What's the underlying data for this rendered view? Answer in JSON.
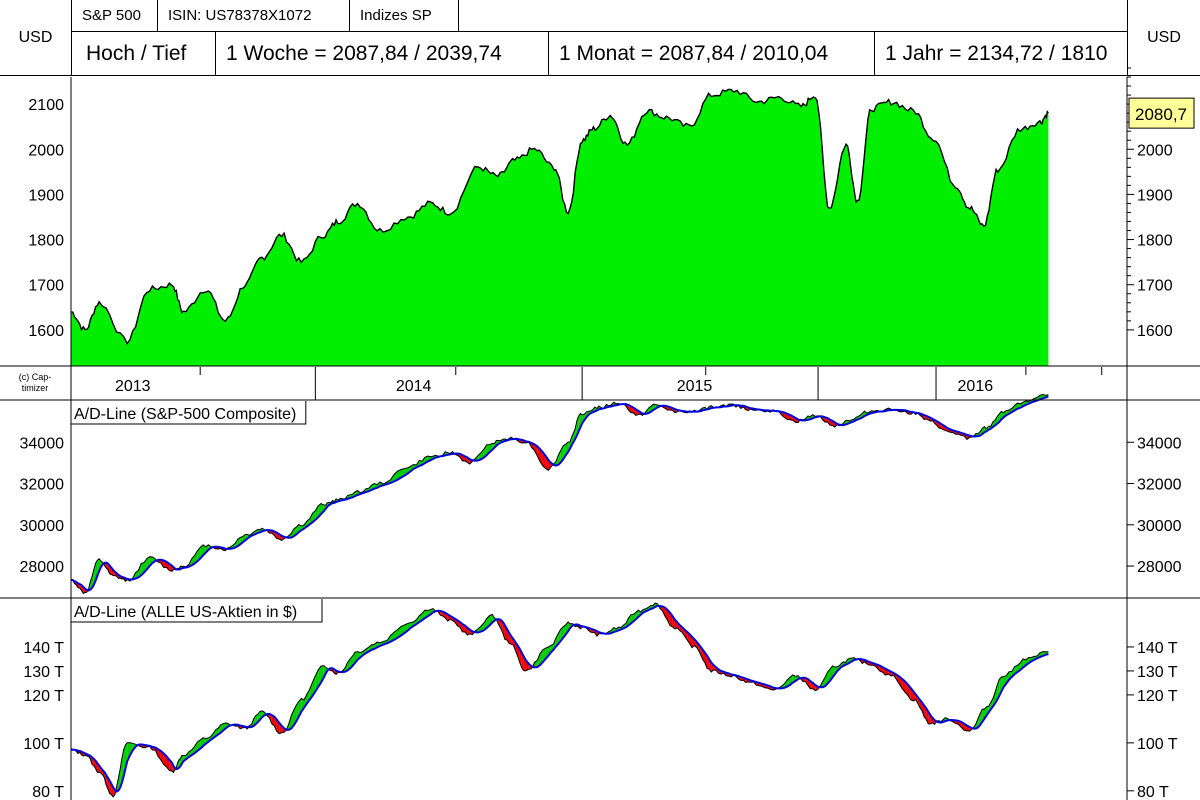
{
  "header": {
    "row1": [
      "S&P 500",
      "ISIN: US78378X1072",
      "Indizes SP"
    ],
    "row2": [
      "Hoch / Tief",
      "1 Woche = 2087,84 / 2039,74",
      "1 Monat = 2087,84 / 2010,04",
      "1 Jahr = 2134,72 / 1810"
    ],
    "currency_left": "USD",
    "currency_right": "USD"
  },
  "copyright": [
    "(c) Cap-",
    "timizer"
  ],
  "colors": {
    "price_fill": "#00ee00",
    "up_fill": "#00cc00",
    "down_fill": "#ee0000",
    "ma_line": "#0000dd",
    "last_price_bg": "#ffff99"
  },
  "chart_data": [
    {
      "type": "area",
      "name": "S&P 500",
      "ylim": [
        1520,
        2160
      ],
      "yticks": [
        "1600",
        "1700",
        "1800",
        "1900",
        "2000",
        "2100"
      ],
      "last_value_label": "2080,7",
      "x_axis_labels": [
        "2013",
        "2014",
        "2015",
        "2016"
      ],
      "x": [
        2012.8,
        2012.85,
        2012.9,
        2013.0,
        2013.08,
        2013.16,
        2013.2,
        2013.28,
        2013.35,
        2013.42,
        2013.48,
        2013.55,
        2013.62,
        2013.7,
        2013.75,
        2013.82,
        2013.9,
        2014.0,
        2014.08,
        2014.15,
        2014.25,
        2014.32,
        2014.38,
        2014.45,
        2014.52,
        2014.57,
        2014.62,
        2014.66,
        2014.72,
        2014.78,
        2014.85,
        2014.92,
        2015.0,
        2015.08,
        2015.16,
        2015.25,
        2015.32,
        2015.4,
        2015.45,
        2015.5,
        2015.56,
        2015.6,
        2015.65,
        2015.72,
        2015.8,
        2015.87,
        2015.95,
        2016.0,
        2016.05,
        2016.1,
        2016.18,
        2016.25,
        2016.28
      ],
      "values": [
        1640,
        1600,
        1660,
        1575,
        1690,
        1700,
        1640,
        1690,
        1620,
        1700,
        1760,
        1810,
        1750,
        1810,
        1840,
        1880,
        1820,
        1850,
        1880,
        1860,
        1960,
        1940,
        1975,
        2000,
        1960,
        1862,
        2020,
        2045,
        2075,
        2010,
        2085,
        2070,
        2050,
        2120,
        2130,
        2105,
        2115,
        2095,
        2120,
        1870,
        2010,
        1885,
        2090,
        2105,
        2085,
        2025,
        1920,
        1870,
        1830,
        1955,
        2045,
        2060,
        2080
      ]
    },
    {
      "type": "line",
      "name": "A/D-Line (S&P-500 Composite)",
      "ylim": [
        26500,
        36000
      ],
      "yticks": [
        "28000",
        "30000",
        "32000",
        "34000"
      ],
      "x": [
        2012.8,
        2012.85,
        2012.9,
        2012.95,
        2013.0,
        2013.08,
        2013.16,
        2013.2,
        2013.28,
        2013.35,
        2013.42,
        2013.48,
        2013.55,
        2013.62,
        2013.7,
        2013.75,
        2013.82,
        2013.9,
        2014.0,
        2014.08,
        2014.15,
        2014.22,
        2014.3,
        2014.36,
        2014.42,
        2014.5,
        2014.57,
        2014.62,
        2014.68,
        2014.75,
        2014.82,
        2014.88,
        2014.95,
        2015.02,
        2015.08,
        2015.15,
        2015.22,
        2015.3,
        2015.38,
        2015.45,
        2015.52,
        2015.58,
        2015.64,
        2015.72,
        2015.8,
        2015.86,
        2015.92,
        2016.0,
        2016.06,
        2016.12,
        2016.2,
        2016.28
      ],
      "values": [
        27300,
        26700,
        28300,
        27500,
        27300,
        28400,
        27800,
        28000,
        29000,
        28800,
        29500,
        29800,
        29300,
        30000,
        31000,
        31200,
        31600,
        32000,
        32800,
        33300,
        33500,
        33000,
        34000,
        34200,
        34000,
        32700,
        34000,
        35400,
        35700,
        35900,
        35300,
        35800,
        35500,
        35500,
        35700,
        35800,
        35600,
        35500,
        35000,
        35300,
        34800,
        35100,
        35500,
        35600,
        35400,
        35000,
        34500,
        34200,
        34700,
        35500,
        36000,
        36300
      ]
    },
    {
      "type": "line",
      "name": "A/D-Line (ALLE US-Aktien in $)",
      "ylim": [
        77000,
        160000
      ],
      "yticks": [
        "80 T",
        "100 T",
        "120 T",
        "130 T",
        "140 T"
      ],
      "x": [
        2012.8,
        2012.85,
        2012.9,
        2012.95,
        2013.0,
        2013.08,
        2013.16,
        2013.2,
        2013.28,
        2013.35,
        2013.42,
        2013.48,
        2013.55,
        2013.62,
        2013.7,
        2013.75,
        2013.82,
        2013.9,
        2014.0,
        2014.08,
        2014.15,
        2014.22,
        2014.3,
        2014.36,
        2014.42,
        2014.5,
        2014.57,
        2014.62,
        2014.68,
        2014.75,
        2014.82,
        2014.88,
        2014.95,
        2015.02,
        2015.08,
        2015.15,
        2015.22,
        2015.3,
        2015.38,
        2015.45,
        2015.52,
        2015.58,
        2015.64,
        2015.72,
        2015.8,
        2015.86,
        2015.92,
        2016.0,
        2016.06,
        2016.12,
        2016.2,
        2016.28
      ],
      "values": [
        97000,
        95000,
        88000,
        78000,
        100000,
        98000,
        88000,
        95000,
        102000,
        108000,
        106000,
        113000,
        104000,
        118000,
        132000,
        129000,
        138000,
        142000,
        150000,
        156000,
        151000,
        145000,
        153000,
        142000,
        130000,
        140000,
        150000,
        148000,
        145000,
        148000,
        155000,
        158000,
        148000,
        140000,
        130000,
        128000,
        125000,
        122000,
        128000,
        122000,
        132000,
        135000,
        133000,
        128000,
        118000,
        108000,
        110000,
        105000,
        115000,
        128000,
        135000,
        138000
      ]
    }
  ]
}
